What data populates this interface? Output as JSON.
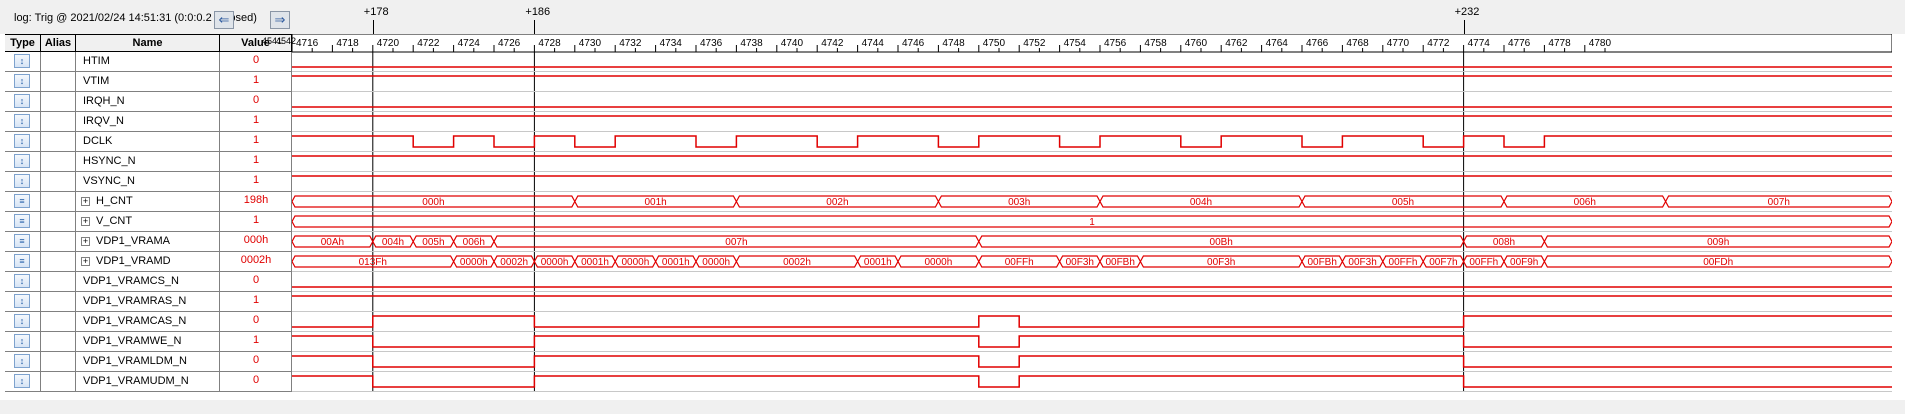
{
  "window": {
    "log_label": "log: Trig @ 2021/02/24 14:51:31 (0:0:0.2 elapsed)",
    "nav_left_icon": "arrow-left-icon",
    "nav_right_icon": "arrow-right-icon"
  },
  "columns": {
    "type": "Type",
    "alias": "Alias",
    "name": "Name",
    "value": "Value"
  },
  "time_axis": {
    "start_label": "4541",
    "start_label2": "4542",
    "ticks": [
      "4716",
      "4718",
      "4720",
      "4722",
      "4724",
      "4726",
      "4728",
      "4730",
      "4732",
      "4734",
      "4736",
      "4738",
      "4740",
      "4742",
      "4744",
      "4746",
      "4748",
      "4750",
      "4752",
      "4754",
      "4756",
      "4758",
      "4760",
      "4762",
      "4764",
      "4766",
      "4768",
      "4770",
      "4772",
      "4774",
      "4776",
      "4778",
      "4780"
    ],
    "markers": [
      {
        "label": "+178",
        "sample": 4720
      },
      {
        "label": "+186",
        "sample": 4728
      },
      {
        "label": "+232",
        "sample": 4774
      }
    ]
  },
  "colors": {
    "wave": "#e00000",
    "marker": "#000000",
    "row_border": "#808080"
  },
  "signals": [
    {
      "name": "HTIM",
      "type_icon": "bit-signal-icon",
      "value": "0",
      "kind": "bit",
      "edges": [
        {
          "t": 4716,
          "v": 0
        }
      ]
    },
    {
      "name": "VTIM",
      "type_icon": "bit-signal-icon",
      "value": "1",
      "kind": "bit",
      "edges": [
        {
          "t": 4716,
          "v": 1
        }
      ]
    },
    {
      "name": "IRQH_N",
      "type_icon": "bit-signal-icon",
      "value": "0",
      "kind": "bit",
      "edges": [
        {
          "t": 4716,
          "v": 0
        }
      ]
    },
    {
      "name": "IRQV_N",
      "type_icon": "bit-signal-icon",
      "value": "1",
      "kind": "bit",
      "edges": [
        {
          "t": 4716,
          "v": 1
        }
      ]
    },
    {
      "name": "DCLK",
      "type_icon": "bit-signal-icon",
      "value": "1",
      "kind": "bit",
      "edges": [
        {
          "t": 4716,
          "v": 1
        },
        {
          "t": 4717.0,
          "v": 1
        },
        {
          "t": 4718.0,
          "v": 1
        },
        {
          "t": 4722.0,
          "v": 0
        },
        {
          "t": 4724.0,
          "v": 1
        },
        {
          "t": 4726.0,
          "v": 0
        },
        {
          "t": 4728.0,
          "v": 1
        },
        {
          "t": 4730.0,
          "v": 0
        },
        {
          "t": 4732.0,
          "v": 1
        },
        {
          "t": 4736.0,
          "v": 0
        },
        {
          "t": 4738.0,
          "v": 1
        },
        {
          "t": 4742.0,
          "v": 0
        },
        {
          "t": 4744.0,
          "v": 1
        },
        {
          "t": 4748.0,
          "v": 0
        },
        {
          "t": 4750.0,
          "v": 1
        },
        {
          "t": 4754.0,
          "v": 0
        },
        {
          "t": 4756.0,
          "v": 1
        },
        {
          "t": 4760.0,
          "v": 0
        },
        {
          "t": 4762.0,
          "v": 1
        },
        {
          "t": 4766.0,
          "v": 0
        },
        {
          "t": 4768.0,
          "v": 1
        },
        {
          "t": 4772.0,
          "v": 0
        },
        {
          "t": 4774.0,
          "v": 1
        },
        {
          "t": 4776.0,
          "v": 0
        },
        {
          "t": 4778.0,
          "v": 1
        }
      ]
    },
    {
      "name": "HSYNC_N",
      "type_icon": "bit-signal-icon",
      "value": "1",
      "kind": "bit",
      "edges": [
        {
          "t": 4716,
          "v": 1
        }
      ]
    },
    {
      "name": "VSYNC_N",
      "type_icon": "bit-signal-icon",
      "value": "1",
      "kind": "bit",
      "edges": [
        {
          "t": 4716,
          "v": 1
        }
      ]
    },
    {
      "name": "H_CNT",
      "type_icon": "bus-signal-icon",
      "value": "198h",
      "kind": "bus",
      "segments": [
        {
          "t": 4716,
          "label": "000h"
        },
        {
          "t": 4730,
          "label": "001h"
        },
        {
          "t": 4738,
          "label": "002h"
        },
        {
          "t": 4748,
          "label": "003h"
        },
        {
          "t": 4756,
          "label": "004h"
        },
        {
          "t": 4766,
          "label": "005h"
        },
        {
          "t": 4776,
          "label": "006h"
        },
        {
          "t": 4784,
          "label": "007h"
        }
      ]
    },
    {
      "name": "V_CNT",
      "type_icon": "bus-signal-icon",
      "value": "1",
      "kind": "bus",
      "segments": [
        {
          "t": 4716,
          "label": "1"
        }
      ]
    },
    {
      "name": "VDP1_VRAMA",
      "type_icon": "bus-signal-icon",
      "value": "000h",
      "kind": "bus",
      "segments": [
        {
          "t": 4716,
          "label": "00Ah"
        },
        {
          "t": 4720,
          "label": "004h"
        },
        {
          "t": 4722,
          "label": "005h"
        },
        {
          "t": 4724,
          "label": "006h"
        },
        {
          "t": 4726,
          "label": "007h"
        },
        {
          "t": 4750,
          "label": "00Bh"
        },
        {
          "t": 4774,
          "label": "008h"
        },
        {
          "t": 4778,
          "label": "009h"
        }
      ]
    },
    {
      "name": "VDP1_VRAMD",
      "type_icon": "bus-signal-icon",
      "value": "0002h",
      "kind": "bus",
      "segments": [
        {
          "t": 4716,
          "label": "013Fh"
        },
        {
          "t": 4724,
          "label": "0000h"
        },
        {
          "t": 4726,
          "label": "0002h"
        },
        {
          "t": 4728,
          "label": "0000h"
        },
        {
          "t": 4730,
          "label": "0001h"
        },
        {
          "t": 4732,
          "label": "0000h"
        },
        {
          "t": 4734,
          "label": "0001h"
        },
        {
          "t": 4736,
          "label": "0000h"
        },
        {
          "t": 4738,
          "label": "0002h"
        },
        {
          "t": 4744,
          "label": "0001h"
        },
        {
          "t": 4746,
          "label": "0000h"
        },
        {
          "t": 4750,
          "label": "00FFh"
        },
        {
          "t": 4754,
          "label": "00F3h"
        },
        {
          "t": 4756,
          "label": "00FBh"
        },
        {
          "t": 4758,
          "label": "00F3h"
        },
        {
          "t": 4766,
          "label": "00FBh"
        },
        {
          "t": 4768,
          "label": "00F3h"
        },
        {
          "t": 4770,
          "label": "00FFh"
        },
        {
          "t": 4772,
          "label": "00F7h"
        },
        {
          "t": 4774,
          "label": "00FFh"
        },
        {
          "t": 4776,
          "label": "00F9h"
        },
        {
          "t": 4778,
          "label": "00FDh"
        }
      ]
    },
    {
      "name": "VDP1_VRAMCS_N",
      "type_icon": "bit-signal-icon",
      "value": "0",
      "kind": "bit",
      "edges": [
        {
          "t": 4716,
          "v": 0
        },
        {
          "t": 4750,
          "v": 0
        },
        {
          "t": 4750.01,
          "v": -1
        },
        {
          "t": 4752,
          "v": 0
        }
      ]
    },
    {
      "name": "VDP1_VRAMRAS_N",
      "type_icon": "bit-signal-icon",
      "value": "1",
      "kind": "bit",
      "edges": [
        {
          "t": 4716,
          "v": 1
        }
      ]
    },
    {
      "name": "VDP1_VRAMCAS_N",
      "type_icon": "bit-signal-icon",
      "value": "0",
      "kind": "bit",
      "edges": [
        {
          "t": 4716,
          "v": 0
        },
        {
          "t": 4720,
          "v": 1
        },
        {
          "t": 4728,
          "v": 0
        },
        {
          "t": 4750,
          "v": 1
        },
        {
          "t": 4752,
          "v": 0
        },
        {
          "t": 4774,
          "v": 1
        }
      ]
    },
    {
      "name": "VDP1_VRAMWE_N",
      "type_icon": "bit-signal-icon",
      "value": "1",
      "kind": "bit",
      "edges": [
        {
          "t": 4716,
          "v": 1
        },
        {
          "t": 4720,
          "v": 0
        },
        {
          "t": 4728,
          "v": 1
        },
        {
          "t": 4750,
          "v": 0
        },
        {
          "t": 4752,
          "v": 1
        },
        {
          "t": 4774,
          "v": 0
        }
      ]
    },
    {
      "name": "VDP1_VRAMLDM_N",
      "type_icon": "bit-signal-icon",
      "value": "0",
      "kind": "bit",
      "edges": [
        {
          "t": 4716,
          "v": 1
        },
        {
          "t": 4720,
          "v": 0
        },
        {
          "t": 4728,
          "v": 1
        },
        {
          "t": 4750,
          "v": 0
        },
        {
          "t": 4752,
          "v": 1
        },
        {
          "t": 4774,
          "v": 0
        }
      ]
    },
    {
      "name": "VDP1_VRAMUDM_N",
      "type_icon": "bit-signal-icon",
      "value": "0",
      "kind": "bit",
      "edges": [
        {
          "t": 4716,
          "v": 1
        },
        {
          "t": 4720,
          "v": 0
        },
        {
          "t": 4728,
          "v": 1
        },
        {
          "t": 4750,
          "v": 0
        },
        {
          "t": 4752,
          "v": 1
        },
        {
          "t": 4774,
          "v": 0
        }
      ]
    }
  ]
}
